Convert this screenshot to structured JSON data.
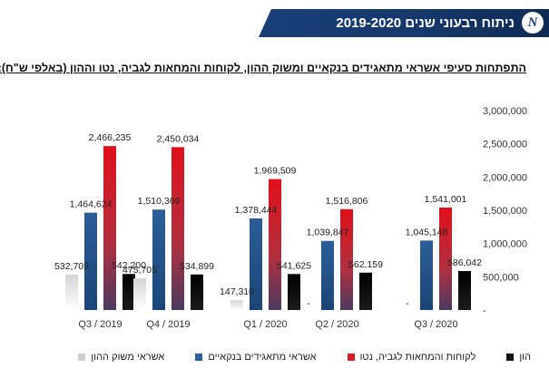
{
  "header": {
    "title": "ניתוח רבעוני שנים 2019-2020",
    "logo_letter": "N"
  },
  "chart_data": {
    "type": "bar",
    "title": "התפתחות סעיפי אשראי מתאגידים בנקאיים ומשוק ההון, לקוחות והמחאות לגביה, נטו וההון (באלפי ש\"ח):",
    "categories": [
      "Q3 / 2019",
      "Q4 / 2019",
      "Q1 / 2020",
      "Q2 / 2020",
      "Q3 / 2020"
    ],
    "ylim": [
      0,
      3000000
    ],
    "yticks": [
      "-",
      "500,000",
      "1,000,000",
      "1,500,000",
      "2,000,000",
      "2,500,000",
      "3,000,000"
    ],
    "grid": false,
    "legend_position": "bottom",
    "series": [
      {
        "name": "אשראי משוק ההון",
        "color": "#d0d0d0",
        "values": [
          532705,
          475705,
          147310,
          0,
          0
        ],
        "labels": [
          "532,705",
          "475,705",
          "147,310",
          "-",
          "-"
        ]
      },
      {
        "name": "אשראי מתאגידים בנקאיים",
        "color": "#2d5f9a",
        "values": [
          1464624,
          1510369,
          1378444,
          1039847,
          1045148
        ],
        "labels": [
          "1,464,624",
          "1,510,369",
          "1,378,444",
          "1,039,847",
          "1,045,148"
        ]
      },
      {
        "name": "לקוחות והמחאות לגביה, נטו",
        "color": "#d81e24",
        "values": [
          2466235,
          2450034,
          1969509,
          1516806,
          1541001
        ],
        "labels": [
          "2,466,235",
          "2,450,034",
          "1,969,509",
          "1,516,806",
          "1,541,001"
        ]
      },
      {
        "name": "הון",
        "color": "#111111",
        "values": [
          542200,
          534899,
          541625,
          562159,
          586042
        ],
        "labels": [
          "542,200",
          "534,899",
          "541,625",
          "562,159",
          "586,042"
        ]
      }
    ]
  }
}
